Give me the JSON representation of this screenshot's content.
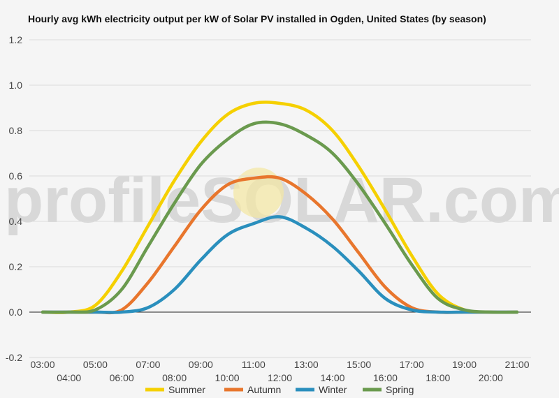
{
  "chart_data": {
    "type": "line",
    "title": "Hourly avg kWh electricity output per kW of Solar PV installed in Ogden, United States (by season)",
    "watermark": "profileSOLAR.com",
    "x": [
      "03:00",
      "04:00",
      "05:00",
      "06:00",
      "07:00",
      "08:00",
      "09:00",
      "10:00",
      "11:00",
      "12:00",
      "13:00",
      "14:00",
      "15:00",
      "16:00",
      "17:00",
      "18:00",
      "19:00",
      "20:00",
      "21:00"
    ],
    "ylim": [
      -0.2,
      1.2
    ],
    "yticks": [
      "-0.2",
      "0.0",
      "0.2",
      "0.4",
      "0.6",
      "0.8",
      "1.0",
      "1.2"
    ],
    "grid": true,
    "legend_position": "bottom",
    "series": [
      {
        "name": "Summer",
        "color": "#f5d000",
        "values": [
          0,
          0,
          0.03,
          0.18,
          0.38,
          0.58,
          0.75,
          0.87,
          0.92,
          0.92,
          0.89,
          0.8,
          0.64,
          0.45,
          0.25,
          0.08,
          0.01,
          0,
          0
        ]
      },
      {
        "name": "Autumn",
        "color": "#e8762d",
        "values": [
          0,
          0,
          0,
          0.01,
          0.13,
          0.29,
          0.45,
          0.56,
          0.59,
          0.59,
          0.52,
          0.41,
          0.26,
          0.11,
          0.02,
          0,
          0,
          0,
          0
        ]
      },
      {
        "name": "Winter",
        "color": "#2a8fbd",
        "values": [
          0,
          0,
          0,
          0,
          0.02,
          0.1,
          0.23,
          0.34,
          0.39,
          0.42,
          0.37,
          0.29,
          0.18,
          0.06,
          0.01,
          0,
          0,
          0,
          0
        ]
      },
      {
        "name": "Spring",
        "color": "#6a9a4e",
        "values": [
          0,
          0,
          0.01,
          0.1,
          0.29,
          0.48,
          0.65,
          0.76,
          0.83,
          0.83,
          0.78,
          0.7,
          0.56,
          0.39,
          0.21,
          0.06,
          0.01,
          0,
          0
        ]
      }
    ]
  }
}
